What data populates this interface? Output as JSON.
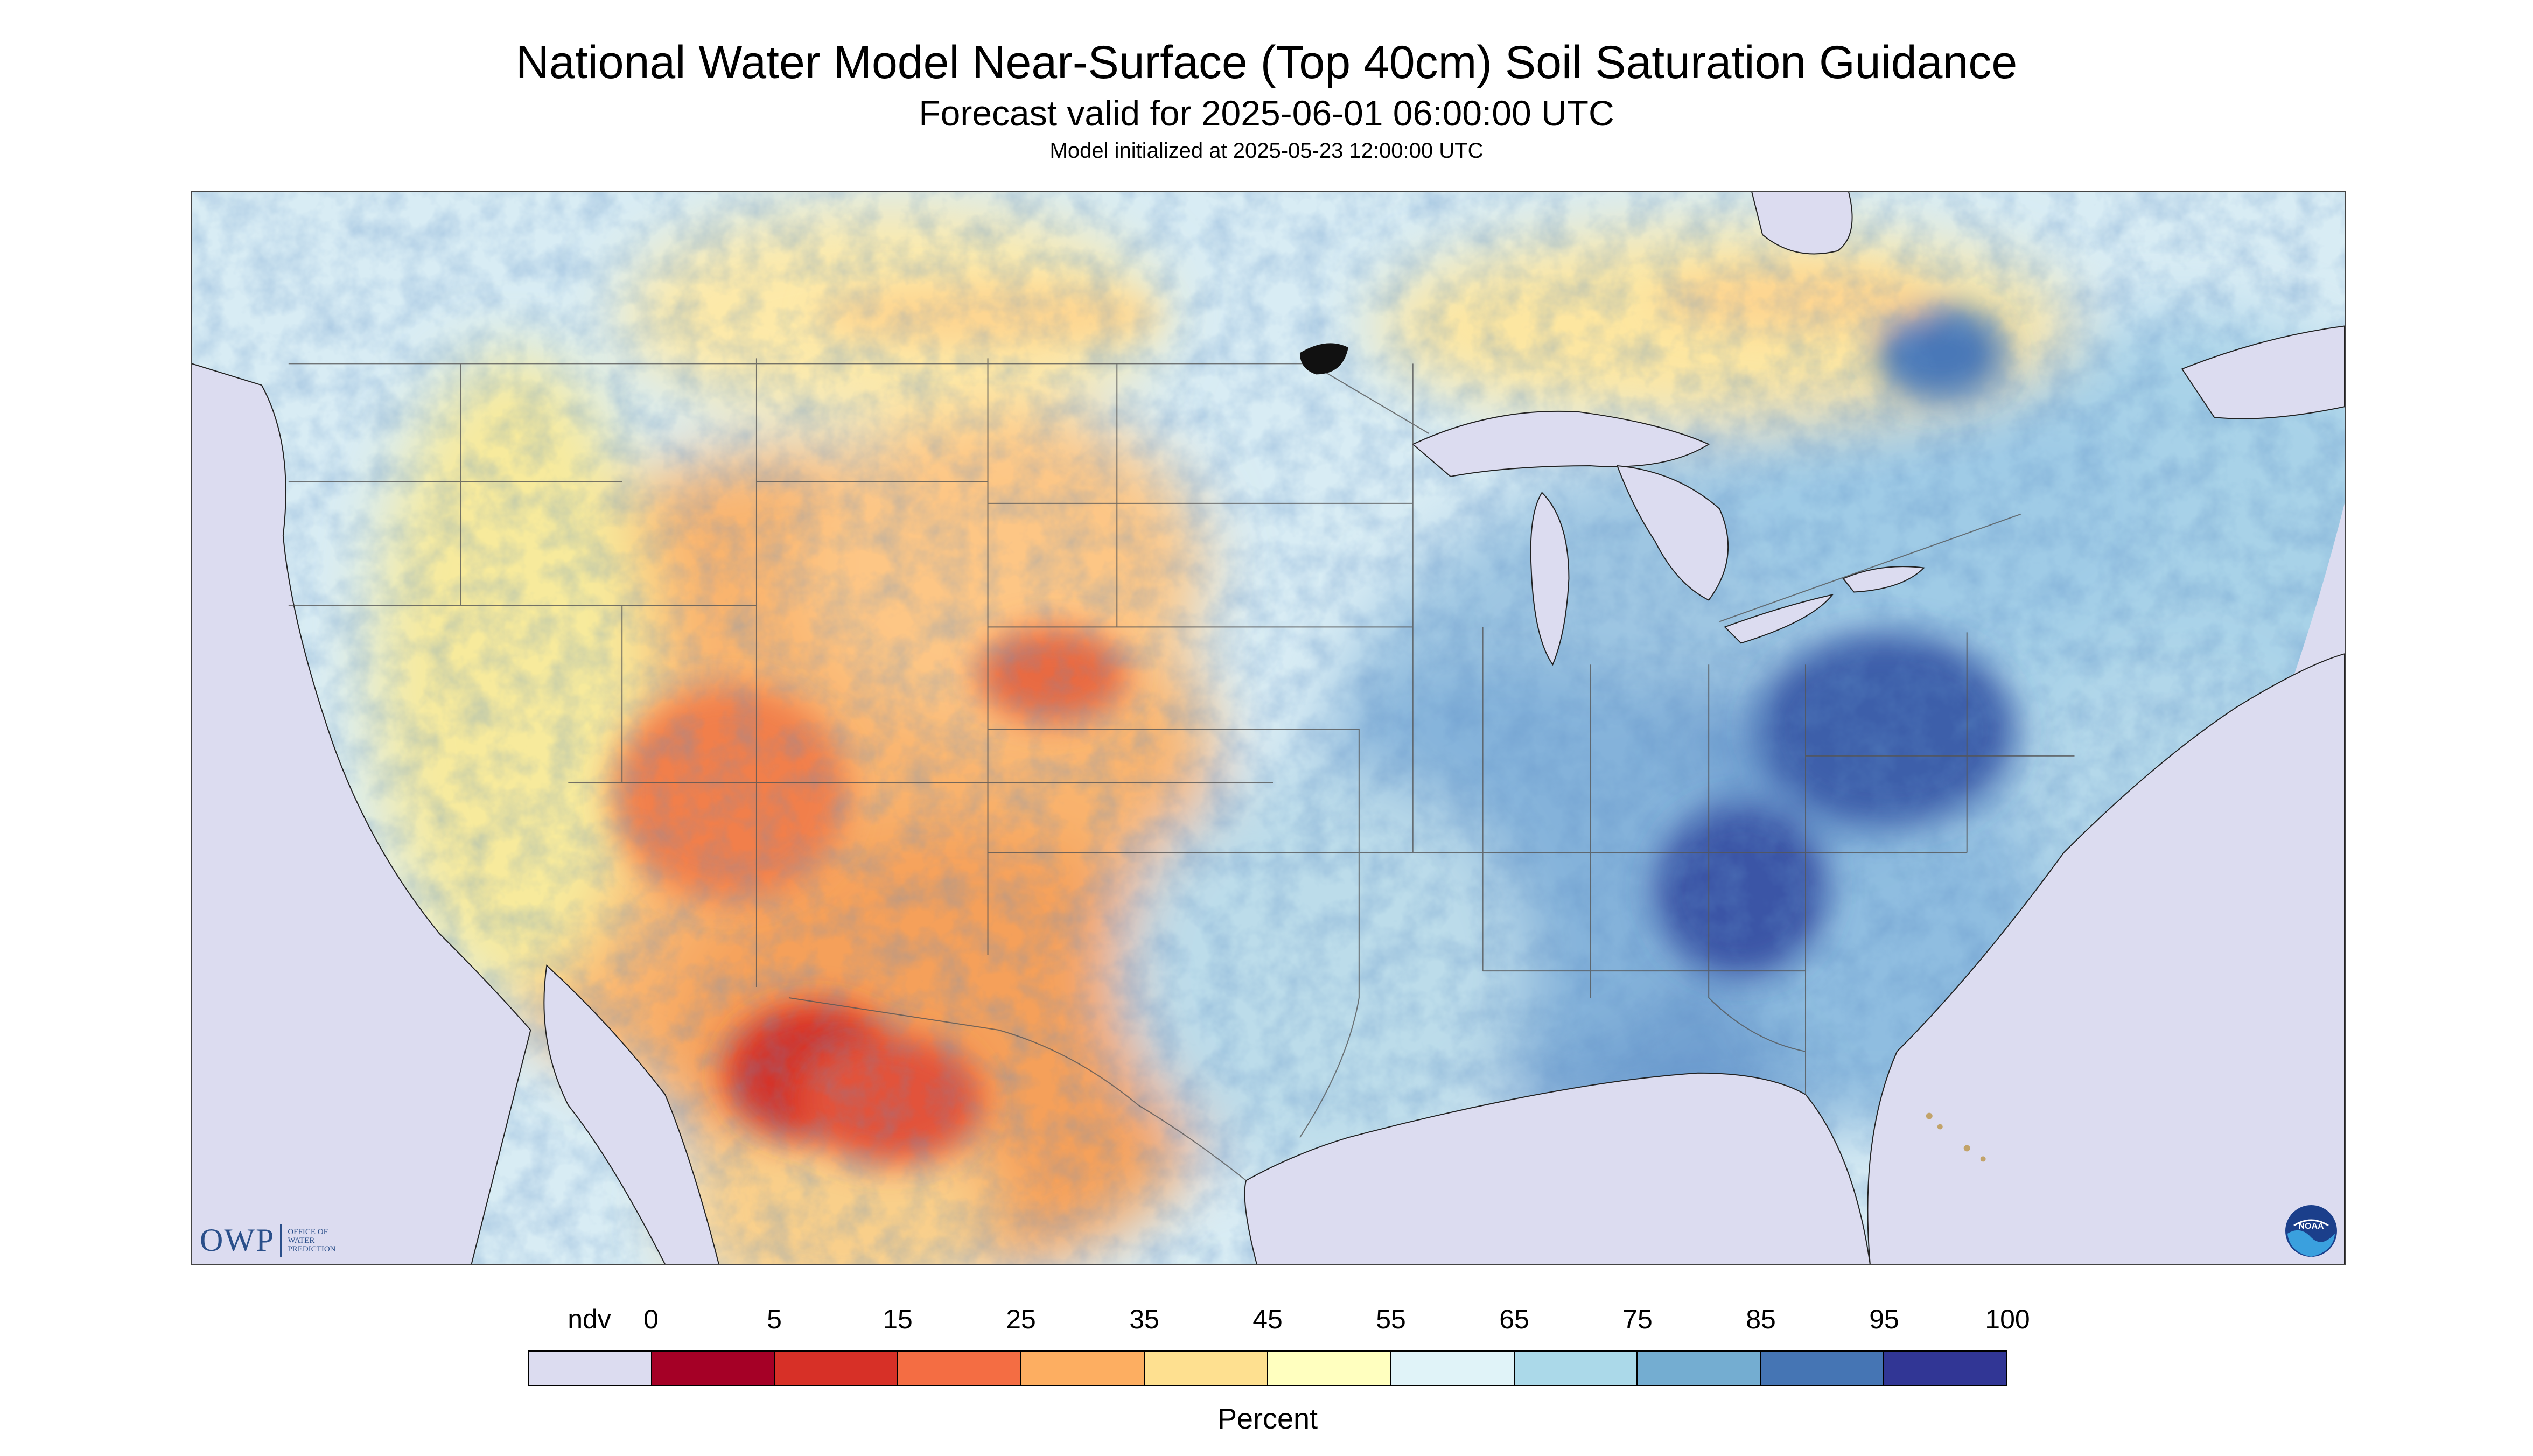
{
  "header": {
    "title": "National Water Model Near-Surface (Top 40cm) Soil Saturation Guidance",
    "subtitle": "Forecast valid for 2025-06-01 06:00:00 UTC",
    "init_line": "Model initialized at 2025-05-23 12:00:00 UTC"
  },
  "map": {
    "outside_domain_color": "#dcdcf0",
    "water_color": "#dcdcf0",
    "boundary_color": "#555555"
  },
  "legend": {
    "tick_labels": [
      "ndv",
      "0",
      "5",
      "15",
      "25",
      "35",
      "45",
      "55",
      "65",
      "75",
      "85",
      "95",
      "100"
    ],
    "colors": [
      "#dcdcf0",
      "#a50026",
      "#d73027",
      "#f46d43",
      "#fdae61",
      "#fee090",
      "#ffffbf",
      "#e0f3f8",
      "#abd9e9",
      "#74add1",
      "#4575b4",
      "#313695"
    ],
    "unit_label": "Percent"
  },
  "logos": {
    "owp": {
      "main": "OWP",
      "sub_lines": [
        "Office of",
        "Water",
        "Prediction"
      ]
    },
    "noaa": {
      "text": "NOAA"
    }
  }
}
